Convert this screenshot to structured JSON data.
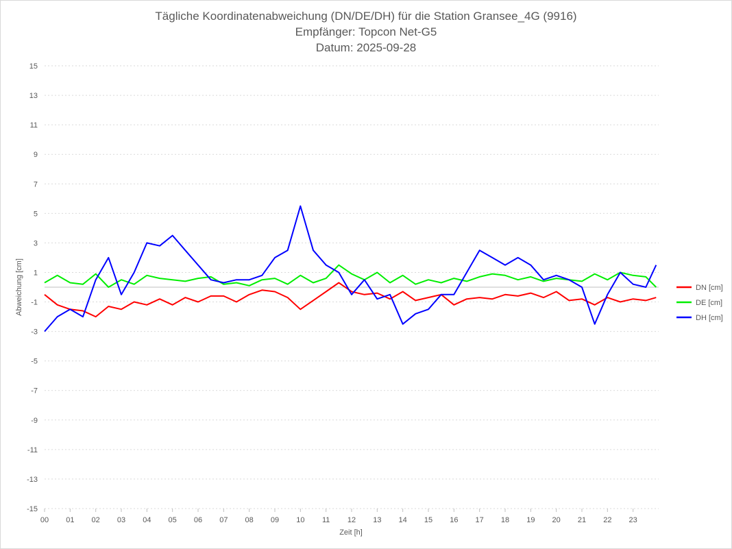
{
  "chart_data": {
    "type": "line",
    "title_lines": [
      "Tägliche Koordinatenabweichung (DN/DE/DH) für die Station Gransee_4G (9916)",
      "Empfänger: Topcon Net-G5",
      "Datum: 2025-09-28"
    ],
    "xlabel": "Zeit [h]",
    "ylabel": "Abweichung [cm]",
    "xlim": [
      0,
      24
    ],
    "ylim": [
      -15,
      15
    ],
    "x_ticks": [
      "00",
      "01",
      "02",
      "03",
      "04",
      "05",
      "06",
      "07",
      "08",
      "09",
      "10",
      "11",
      "12",
      "13",
      "14",
      "15",
      "16",
      "17",
      "18",
      "19",
      "20",
      "21",
      "22",
      "23"
    ],
    "y_ticks": [
      "15",
      "13",
      "11",
      "9",
      "7",
      "5",
      "3",
      "1",
      "-1",
      "-3",
      "-5",
      "-7",
      "-9",
      "-11",
      "-13",
      "-15"
    ],
    "grid": true,
    "legend_position": "right",
    "x": [
      0,
      0.5,
      1,
      1.5,
      2,
      2.5,
      3,
      3.5,
      4,
      4.5,
      5,
      5.5,
      6,
      6.5,
      7,
      7.5,
      8,
      8.5,
      9,
      9.5,
      10,
      10.5,
      11,
      11.5,
      12,
      12.5,
      13,
      13.5,
      14,
      14.5,
      15,
      15.5,
      16,
      16.5,
      17,
      17.5,
      18,
      18.5,
      19,
      19.5,
      20,
      20.5,
      21,
      21.5,
      22,
      22.5,
      23,
      23.5,
      23.9
    ],
    "series": [
      {
        "name": "DN [cm]",
        "color": "#ff0000",
        "values": [
          -0.5,
          -1.2,
          -1.5,
          -1.6,
          -2.0,
          -1.3,
          -1.5,
          -1.0,
          -1.2,
          -0.8,
          -1.2,
          -0.7,
          -1.0,
          -0.6,
          -0.6,
          -1.0,
          -0.5,
          -0.2,
          -0.3,
          -0.7,
          -1.5,
          -0.9,
          -0.3,
          0.3,
          -0.3,
          -0.5,
          -0.4,
          -0.8,
          -0.3,
          -0.9,
          -0.7,
          -0.5,
          -1.2,
          -0.8,
          -0.7,
          -0.8,
          -0.5,
          -0.6,
          -0.4,
          -0.7,
          -0.3,
          -0.9,
          -0.8,
          -1.2,
          -0.7,
          -1.0,
          -0.8,
          -0.9,
          -0.7
        ]
      },
      {
        "name": "DE [cm]",
        "color": "#00ee00",
        "values": [
          0.3,
          0.8,
          0.3,
          0.2,
          0.9,
          0.0,
          0.5,
          0.2,
          0.8,
          0.6,
          0.5,
          0.4,
          0.6,
          0.7,
          0.2,
          0.3,
          0.1,
          0.5,
          0.6,
          0.2,
          0.8,
          0.3,
          0.6,
          1.5,
          0.9,
          0.5,
          1.0,
          0.3,
          0.8,
          0.2,
          0.5,
          0.3,
          0.6,
          0.4,
          0.7,
          0.9,
          0.8,
          0.5,
          0.7,
          0.4,
          0.6,
          0.5,
          0.4,
          0.9,
          0.5,
          1.0,
          0.8,
          0.7,
          0.0
        ]
      },
      {
        "name": "DH [cm]",
        "color": "#0000ff",
        "values": [
          -3.0,
          -2.0,
          -1.5,
          -2.0,
          0.5,
          2.0,
          -0.5,
          1.0,
          3.0,
          2.8,
          3.5,
          2.5,
          1.5,
          0.5,
          0.3,
          0.5,
          0.5,
          0.8,
          2.0,
          2.5,
          5.5,
          2.5,
          1.5,
          1.0,
          -0.5,
          0.5,
          -0.8,
          -0.5,
          -2.5,
          -1.8,
          -1.5,
          -0.5,
          -0.5,
          1.0,
          2.5,
          2.0,
          1.5,
          2.0,
          1.5,
          0.5,
          0.8,
          0.5,
          0.0,
          -2.5,
          -0.5,
          1.0,
          0.2,
          0.0,
          1.5
        ]
      }
    ]
  }
}
